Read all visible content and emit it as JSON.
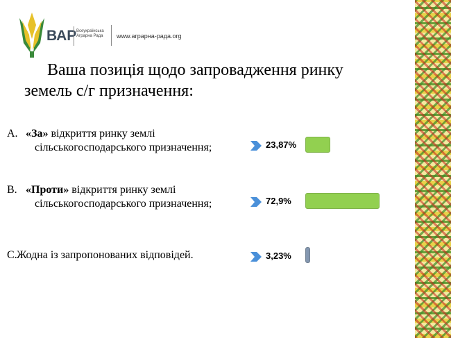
{
  "header": {
    "logo": "ВАР",
    "org": "Всеукраїнська Аграрна Рада",
    "url": "www.аграрна-рада.org"
  },
  "chart_data": {
    "type": "bar",
    "title": "Ваша позиція щодо запровадження ринку земель с/г призначення:",
    "letters": [
      "A.",
      "B.",
      "C."
    ],
    "categories": [
      [
        "«За»",
        " відкриття ринку землі сільськогосподарського призначення;"
      ],
      [
        "«Проти»",
        " відкриття ринку землі сільськогосподарського призначення;"
      ],
      [
        "",
        "Жодна із запропонованих відповідей."
      ]
    ],
    "values": [
      23.87,
      72.9,
      3.23
    ],
    "value_labels": [
      "23,87%",
      "72,9%",
      "3,23%"
    ],
    "colors": [
      "#92d050",
      "#92d050",
      "#8497b0"
    ]
  }
}
